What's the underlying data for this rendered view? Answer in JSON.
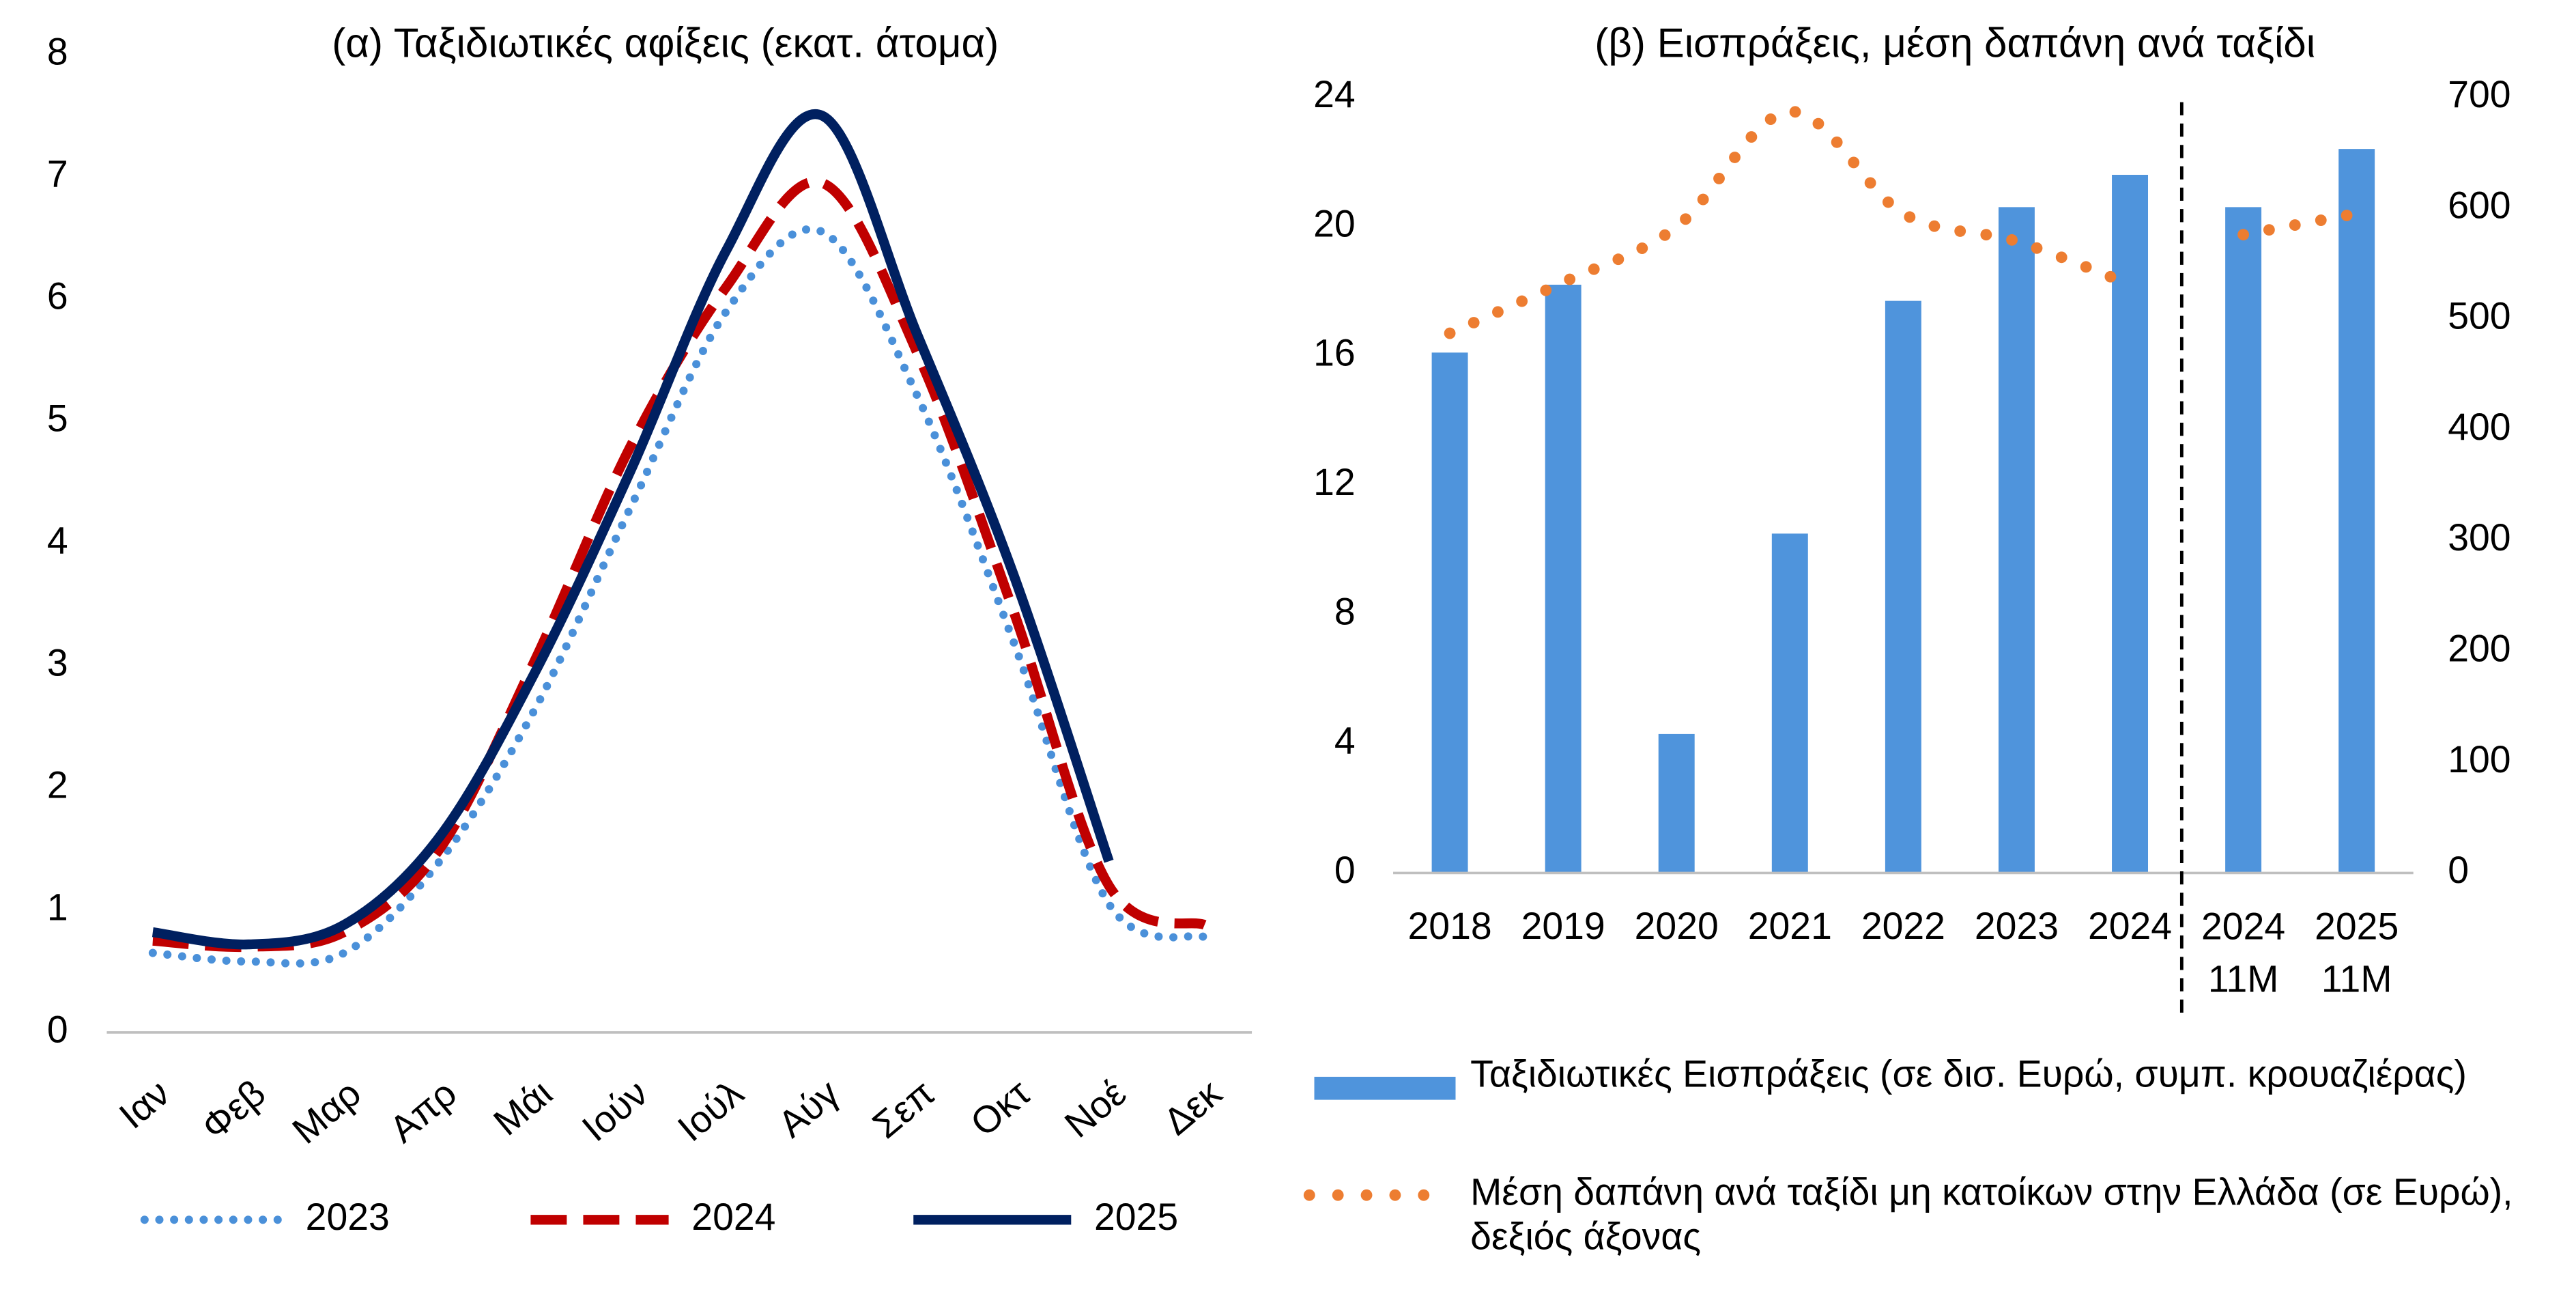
{
  "chart_data": [
    {
      "type": "line",
      "title": "(α) Ταξιδιωτικές αφίξεις (εκατ. άτομα)",
      "categories": [
        "Ιαν",
        "Φεβ",
        "Μαρ",
        "Απρ",
        "Μάι",
        "Ιούν",
        "Ιούλ",
        "Αύγ",
        "Σεπ",
        "Οκτ",
        "Νοέ",
        "Δεκ"
      ],
      "series": [
        {
          "name": "2023",
          "color": "#4a90d9",
          "style": "dotted",
          "values": [
            0.65,
            0.58,
            0.65,
            1.4,
            2.65,
            4.3,
            5.9,
            6.55,
            5.2,
            3.2,
            1.05,
            0.78
          ]
        },
        {
          "name": "2024",
          "color": "#c00000",
          "style": "dashed",
          "values": [
            0.75,
            0.7,
            0.82,
            1.5,
            3.05,
            4.8,
            6.1,
            6.95,
            5.55,
            3.45,
            1.2,
            0.88
          ]
        },
        {
          "name": "2025",
          "color": "#002060",
          "style": "solid",
          "values": [
            0.82,
            0.72,
            0.88,
            1.6,
            2.95,
            4.6,
            6.4,
            7.5,
            5.7,
            3.75,
            1.4,
            null
          ]
        }
      ],
      "ylim": [
        0,
        8
      ],
      "yticks": [
        0,
        1,
        2,
        3,
        4,
        5,
        6,
        7,
        8
      ],
      "legend": "bottom"
    },
    {
      "type": "bar_line",
      "title": "(β) Εισπράξεις, μέση δαπάνη ανά ταξίδι",
      "categories": [
        "2018",
        "2019",
        "2020",
        "2021",
        "2022",
        "2023",
        "2024",
        "2024\n11M",
        "2025\n11M"
      ],
      "series": [
        {
          "name": "Ταξιδιωτικές Εισπράξεις (σε δισ. Ευρώ, συμπ. κρουαζιέρας)",
          "color": "#4f94dc",
          "kind": "bar",
          "values": [
            16.1,
            18.2,
            4.3,
            10.5,
            17.7,
            20.6,
            21.6,
            20.6,
            22.4
          ]
        },
        {
          "name": "Μέση δαπάνη ανά ταξίδι μη κατοίκων στην Ελλάδα (σε Ευρώ), δεξιός άξονας",
          "color": "#ed7d31",
          "kind": "dotted-line",
          "axis": "y2",
          "values": [
            487,
            533,
            583,
            687,
            595,
            570,
            531,
            576,
            595
          ]
        }
      ],
      "ylim": [
        0,
        24
      ],
      "yticks": [
        0,
        4,
        8,
        12,
        16,
        20,
        24
      ],
      "y2lim": [
        0,
        700
      ],
      "y2ticks": [
        0,
        100,
        200,
        300,
        400,
        500,
        600,
        700
      ],
      "legend": "bottom"
    }
  ]
}
